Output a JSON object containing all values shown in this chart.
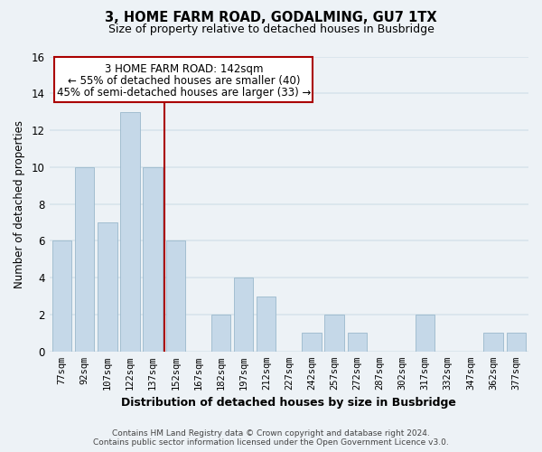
{
  "title": "3, HOME FARM ROAD, GODALMING, GU7 1TX",
  "subtitle": "Size of property relative to detached houses in Busbridge",
  "xlabel": "Distribution of detached houses by size in Busbridge",
  "ylabel": "Number of detached properties",
  "bar_labels": [
    "77sqm",
    "92sqm",
    "107sqm",
    "122sqm",
    "137sqm",
    "152sqm",
    "167sqm",
    "182sqm",
    "197sqm",
    "212sqm",
    "227sqm",
    "242sqm",
    "257sqm",
    "272sqm",
    "287sqm",
    "302sqm",
    "317sqm",
    "332sqm",
    "347sqm",
    "362sqm",
    "377sqm"
  ],
  "bar_values": [
    6,
    10,
    7,
    13,
    10,
    6,
    0,
    2,
    4,
    3,
    0,
    1,
    2,
    1,
    0,
    0,
    2,
    0,
    0,
    1,
    1
  ],
  "bar_color": "#c5d8e8",
  "bar_edge_color": "#9ab8cc",
  "vline_color": "#aa0000",
  "vline_x_index": 4.5,
  "ylim": [
    0,
    16
  ],
  "yticks": [
    0,
    2,
    4,
    6,
    8,
    10,
    12,
    14,
    16
  ],
  "annotation_title": "3 HOME FARM ROAD: 142sqm",
  "annotation_line1": "← 55% of detached houses are smaller (40)",
  "annotation_line2": "45% of semi-detached houses are larger (33) →",
  "annotation_box_facecolor": "#ffffff",
  "annotation_box_edgecolor": "#aa0000",
  "footer_line1": "Contains HM Land Registry data © Crown copyright and database right 2024.",
  "footer_line2": "Contains public sector information licensed under the Open Government Licence v3.0.",
  "background_color": "#edf2f6",
  "grid_color": "#d8e4ec"
}
